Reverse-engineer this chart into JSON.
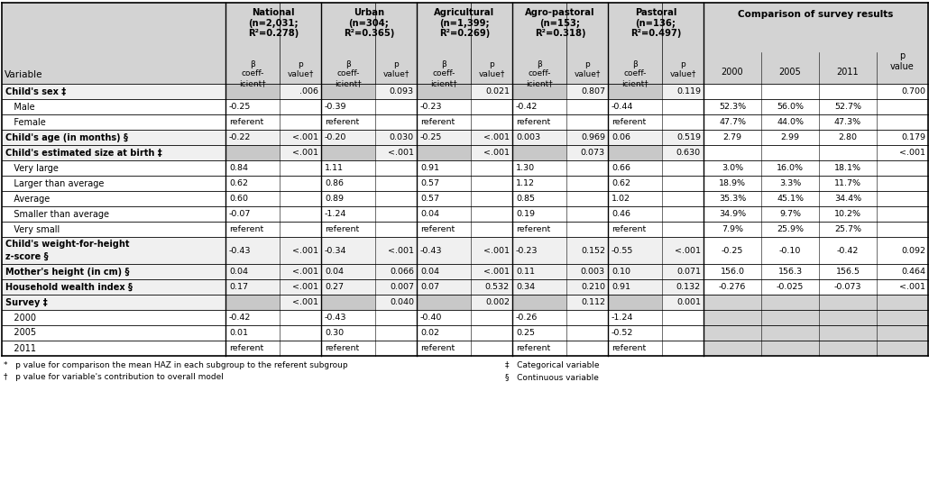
{
  "group_labels": [
    "National\n(n=2,031;\nR²=0.278)",
    "Urban\n(n=304;\nR²=0.365)",
    "Agricultural\n(n=1,399;\nR²=0.269)",
    "Agro-pastoral\n(n=153;\nR²=0.318)",
    "Pastoral\n(n=136;\nR²=0.497)"
  ],
  "rows": [
    {
      "label": "Child's sex ‡",
      "bold": true,
      "data": [
        "",
        ".006",
        "",
        "0.093",
        "",
        "0.021",
        "",
        "0.807",
        "",
        "0.119",
        "",
        "",
        "",
        "0.700"
      ],
      "shaded_beta": [
        0,
        2,
        4,
        6,
        8
      ]
    },
    {
      "label": "   Male",
      "bold": false,
      "data": [
        "-0.25",
        "",
        "-0.39",
        "",
        "-0.23",
        "",
        "-0.42",
        "",
        "-0.44",
        "",
        "52.3%",
        "56.0%",
        "52.7%",
        ""
      ],
      "shaded_beta": []
    },
    {
      "label": "   Female",
      "bold": false,
      "data": [
        "referent",
        "",
        "referent",
        "",
        "referent",
        "",
        "referent",
        "",
        "referent",
        "",
        "47.7%",
        "44.0%",
        "47.3%",
        ""
      ],
      "shaded_beta": []
    },
    {
      "label": "Child's age (in months) §",
      "bold": true,
      "data": [
        "-0.22",
        "<.001",
        "-0.20",
        "0.030",
        "-0.25",
        "<.001",
        "0.003",
        "0.969",
        "0.06",
        "0.519",
        "2.79",
        "2.99",
        "2.80",
        "0.179"
      ],
      "shaded_beta": []
    },
    {
      "label": "Child's estimated size at birth ‡",
      "bold": true,
      "data": [
        "",
        "<.001",
        "",
        "<.001",
        "",
        "<.001",
        "",
        "0.073",
        "",
        "0.630",
        "",
        "",
        "",
        "<.001"
      ],
      "shaded_beta": [
        0,
        2,
        4,
        6,
        8
      ]
    },
    {
      "label": "   Very large",
      "bold": false,
      "data": [
        "0.84",
        "",
        "1.11",
        "",
        "0.91",
        "",
        "1.30",
        "",
        "0.66",
        "",
        "3.0%",
        "16.0%",
        "18.1%",
        ""
      ],
      "shaded_beta": []
    },
    {
      "label": "   Larger than average",
      "bold": false,
      "data": [
        "0.62",
        "",
        "0.86",
        "",
        "0.57",
        "",
        "1.12",
        "",
        "0.62",
        "",
        "18.9%",
        "3.3%",
        "11.7%",
        ""
      ],
      "shaded_beta": []
    },
    {
      "label": "   Average",
      "bold": false,
      "data": [
        "0.60",
        "",
        "0.89",
        "",
        "0.57",
        "",
        "0.85",
        "",
        "1.02",
        "",
        "35.3%",
        "45.1%",
        "34.4%",
        ""
      ],
      "shaded_beta": []
    },
    {
      "label": "   Smaller than average",
      "bold": false,
      "data": [
        "-0.07",
        "",
        "-1.24",
        "",
        "0.04",
        "",
        "0.19",
        "",
        "0.46",
        "",
        "34.9%",
        "9.7%",
        "10.2%",
        ""
      ],
      "shaded_beta": []
    },
    {
      "label": "   Very small",
      "bold": false,
      "data": [
        "referent",
        "",
        "referent",
        "",
        "referent",
        "",
        "referent",
        "",
        "referent",
        "",
        "7.9%",
        "25.9%",
        "25.7%",
        ""
      ],
      "shaded_beta": []
    },
    {
      "label": "Child's weight-for-height\nz-score §",
      "bold": true,
      "multiline": true,
      "data": [
        "-0.43",
        "<.001",
        "-0.34",
        "<.001",
        "-0.43",
        "<.001",
        "-0.23",
        "0.152",
        "-0.55",
        "<.001",
        "-0.25",
        "-0.10",
        "-0.42",
        "0.092"
      ],
      "shaded_beta": []
    },
    {
      "label": "Mother's height (in cm) §",
      "bold": true,
      "data": [
        "0.04",
        "<.001",
        "0.04",
        "0.066",
        "0.04",
        "<.001",
        "0.11",
        "0.003",
        "0.10",
        "0.071",
        "156.0",
        "156.3",
        "156.5",
        "0.464"
      ],
      "shaded_beta": []
    },
    {
      "label": "Household wealth index §",
      "bold": true,
      "data": [
        "0.17",
        "<.001",
        "0.27",
        "0.007",
        "0.07",
        "0.532",
        "0.34",
        "0.210",
        "0.91",
        "0.132",
        "-0.276",
        "-0.025",
        "-0.073",
        "<.001"
      ],
      "shaded_beta": []
    },
    {
      "label": "Survey ‡",
      "bold": true,
      "data": [
        "",
        "<.001",
        "",
        "0.040",
        "",
        "0.002",
        "",
        "0.112",
        "",
        "0.001",
        "",
        "",
        "",
        ""
      ],
      "shaded_beta": [
        0,
        2,
        4,
        6,
        8
      ]
    },
    {
      "label": "   2000",
      "bold": false,
      "data": [
        "-0.42",
        "",
        "-0.43",
        "",
        "-0.40",
        "",
        "-0.26",
        "",
        "-1.24",
        "",
        "",
        "",
        "",
        ""
      ],
      "shaded_beta": []
    },
    {
      "label": "   2005",
      "bold": false,
      "data": [
        "0.01",
        "",
        "0.30",
        "",
        "0.02",
        "",
        "0.25",
        "",
        "-0.52",
        "",
        "",
        "",
        "",
        ""
      ],
      "shaded_beta": []
    },
    {
      "label": "   2011",
      "bold": false,
      "data": [
        "referent",
        "",
        "referent",
        "",
        "referent",
        "",
        "referent",
        "",
        "referent",
        "",
        "",
        "",
        "",
        ""
      ],
      "shaded_beta": []
    }
  ],
  "footnotes_left": [
    "*   p value for comparison the mean HAZ in each subgroup to the referent subgroup",
    "†   p value for variable's contribution to overall model"
  ],
  "footnotes_right": [
    "‡   Categorical variable",
    "§   Continuous variable"
  ],
  "bg_header": "#d3d3d3",
  "bg_bold_row": "#f0f0f0",
  "bg_white": "#ffffff",
  "bg_shaded_beta": "#c8c8c8",
  "bg_right_empty": "#d3d3d3"
}
